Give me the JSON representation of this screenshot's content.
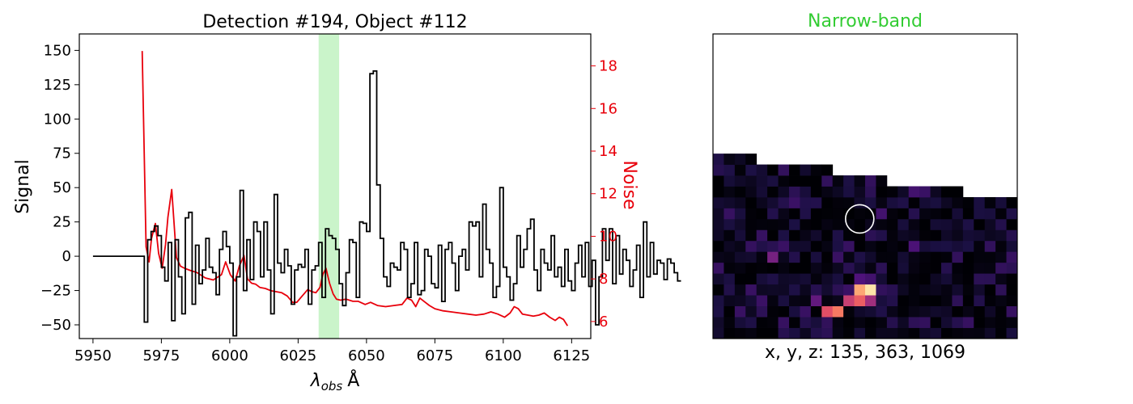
{
  "chart_data": [
    {
      "type": "line",
      "title": "Detection #194, Object #112",
      "xlabel": "λobs Å",
      "xlabel_main": "λ",
      "xlabel_sub": "obs",
      "xlabel_unit": "Å",
      "ylabel": "Signal",
      "y2label": "Noise",
      "xlim": [
        5945,
        6132
      ],
      "ylim": [
        -60,
        162
      ],
      "y2lim": [
        5.2,
        19.5
      ],
      "x_ticks": [
        5950,
        5975,
        6000,
        6025,
        6050,
        6075,
        6100,
        6125
      ],
      "y_ticks": [
        -50,
        -25,
        0,
        25,
        50,
        75,
        100,
        125,
        150
      ],
      "y2_ticks": [
        6,
        8,
        10,
        12,
        14,
        16,
        18
      ],
      "highlight_band": [
        6032.5,
        6040.0
      ],
      "grid": false,
      "series": [
        {
          "name": "Signal",
          "style": "steps",
          "color": "#000000",
          "x_start": 5950.0,
          "x_step": 1.25,
          "values": [
            0,
            0,
            0,
            0,
            0,
            0,
            0,
            0,
            0,
            0,
            0,
            0,
            0,
            0,
            0,
            -48,
            12,
            18,
            22,
            15,
            -8,
            -18,
            10,
            -47,
            12,
            -15,
            -42,
            28,
            32,
            -35,
            8,
            -20,
            -10,
            13,
            -8,
            -12,
            -28,
            5,
            18,
            7,
            -5,
            -58,
            -15,
            48,
            -25,
            12,
            -17,
            25,
            18,
            -15,
            25,
            -10,
            -42,
            45,
            -5,
            -12,
            5,
            -7,
            -35,
            -10,
            -6,
            -8,
            5,
            -35,
            -10,
            -7,
            10,
            -30,
            20,
            15,
            13,
            5,
            -20,
            -36,
            -12,
            12,
            10,
            -30,
            25,
            24,
            18,
            133,
            135,
            52,
            13,
            -15,
            -22,
            -5,
            -8,
            -10,
            10,
            5,
            -30,
            -20,
            10,
            -28,
            -25,
            5,
            0,
            -20,
            -23,
            8,
            -33,
            5,
            10,
            -5,
            -25,
            0,
            5,
            -10,
            25,
            22,
            25,
            -15,
            38,
            5,
            -5,
            -30,
            -22,
            50,
            -8,
            -15,
            -32,
            -20,
            15,
            -8,
            5,
            20,
            27,
            -10,
            -25,
            5,
            -5,
            -10,
            15,
            -15,
            -8,
            -22,
            5,
            -18,
            -25,
            -5,
            8,
            -15,
            10,
            -22,
            -3,
            -50,
            -15,
            20,
            -3,
            20,
            -20,
            15,
            -13,
            5,
            -3,
            -22,
            -10,
            8,
            -30,
            25,
            -15,
            10,
            -13,
            -3,
            -5,
            -17,
            -2,
            -5,
            -12,
            -18
          ]
        },
        {
          "name": "Noise",
          "style": "line",
          "color": "#e8000b",
          "axis": "right",
          "x": [
            5968,
            5969.4,
            5970.5,
            5971.4,
            5972.8,
            5974,
            5975.3,
            5976.5,
            5977.4,
            5978.8,
            5980.5,
            5982,
            5983.5,
            5985.5,
            5988,
            5991,
            5994,
            5997,
            5998.5,
            6000.2,
            6002,
            6003.5,
            6005.2,
            6006.5,
            6008,
            6009.5,
            6011,
            6013,
            6015,
            6017,
            6019,
            6021,
            6023,
            6024.5,
            6026.5,
            6028.5,
            6030,
            6031.5,
            6033,
            6034,
            6035.2,
            6036.5,
            6037.8,
            6039,
            6040.5,
            6042.5,
            6045,
            6047,
            6049.5,
            6051.5,
            6054,
            6057,
            6060,
            6063,
            6064.8,
            6066.5,
            6068,
            6069.5,
            6071.5,
            6073,
            6075,
            6078,
            6081,
            6084,
            6087,
            6090,
            6093,
            6095.5,
            6098,
            6100.5,
            6102.5,
            6104,
            6105.5,
            6107,
            6109,
            6111,
            6113,
            6115,
            6117,
            6119,
            6120.5,
            6122,
            6123.5
          ],
          "values": [
            18.7,
            9.5,
            8.8,
            9.9,
            10.6,
            9.2,
            8.5,
            9.6,
            10.9,
            12.2,
            9.0,
            8.6,
            8.5,
            8.4,
            8.3,
            8.05,
            7.95,
            8.2,
            8.8,
            8.2,
            7.9,
            8.6,
            9.1,
            8.0,
            7.8,
            7.75,
            7.6,
            7.55,
            7.45,
            7.4,
            7.35,
            7.2,
            6.9,
            6.9,
            7.2,
            7.5,
            7.4,
            7.35,
            7.6,
            8.2,
            8.5,
            7.8,
            7.3,
            7.05,
            7.0,
            7.05,
            6.95,
            6.95,
            6.8,
            6.9,
            6.75,
            6.7,
            6.75,
            6.8,
            7.1,
            7.0,
            6.7,
            7.1,
            6.9,
            6.75,
            6.6,
            6.5,
            6.45,
            6.4,
            6.35,
            6.3,
            6.35,
            6.45,
            6.35,
            6.2,
            6.4,
            6.7,
            6.6,
            6.35,
            6.3,
            6.25,
            6.3,
            6.4,
            6.2,
            6.05,
            6.2,
            6.1,
            5.8
          ]
        }
      ]
    },
    {
      "type": "heatmap",
      "title": "Narrow-band",
      "title_color": "#33cc33",
      "xlabel": "x, y, z: 135, 363, 1069",
      "colormap": "magma",
      "background": "#ffffff",
      "grid_size": [
        28,
        28
      ],
      "valid_rows_from_top": [
        17,
        17,
        17,
        17,
        16,
        16,
        16,
        16,
        16,
        16,
        16,
        15,
        15,
        15,
        15,
        15,
        14,
        14,
        14,
        14,
        14,
        14,
        14,
        13,
        13,
        13,
        13,
        13
      ],
      "hot_pixels": [
        {
          "row": 2,
          "col": 10,
          "value": 0.62
        },
        {
          "row": 2,
          "col": 11,
          "value": 0.72
        },
        {
          "row": 3,
          "col": 9,
          "value": 0.3
        },
        {
          "row": 3,
          "col": 12,
          "value": 0.55
        },
        {
          "row": 3,
          "col": 13,
          "value": 0.66
        },
        {
          "row": 3,
          "col": 14,
          "value": 0.45
        },
        {
          "row": 4,
          "col": 12,
          "value": 0.2
        },
        {
          "row": 4,
          "col": 13,
          "value": 0.82
        },
        {
          "row": 4,
          "col": 14,
          "value": 0.95
        },
        {
          "row": 4,
          "col": 15,
          "value": 0.18
        },
        {
          "row": 5,
          "col": 13,
          "value": 0.25
        },
        {
          "row": 5,
          "col": 14,
          "value": 0.22
        },
        {
          "row": 7,
          "col": 5,
          "value": 0.35
        },
        {
          "row": 8,
          "col": 18,
          "value": 0.24
        },
        {
          "row": 11,
          "col": 15,
          "value": 0.22
        },
        {
          "row": 12,
          "col": 7,
          "value": 0.2
        },
        {
          "row": 13,
          "col": 18,
          "value": 0.22
        },
        {
          "row": 15,
          "col": 12,
          "value": 0.24
        },
        {
          "row": 17,
          "col": 20,
          "value": 0.2
        }
      ],
      "noise_seed": 194,
      "noise_max": 0.2,
      "marker": {
        "shape": "circle",
        "col": 13.5,
        "row": 4.0,
        "radius": 1.3,
        "color": "#ffffff"
      }
    }
  ]
}
